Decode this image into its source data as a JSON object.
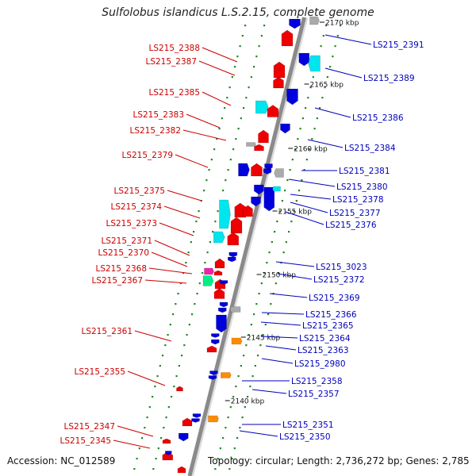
{
  "title": "Sulfolobus islandicus L.S.2.15, complete genome",
  "footer": {
    "accession_label": "Accession:",
    "accession": "NC_012589",
    "topology": "Topology: circular",
    "length": "Length: 2,736,272 bp",
    "genes": "Genes: 2,785"
  },
  "colors": {
    "backbone": "#8a8a8a",
    "forward_gene": "#ee0000",
    "reverse_gene": "#0000dd",
    "label_left": "#cc0000",
    "label_right": "#0000bb",
    "cyan": "#00e5ee",
    "gray": "#aaaaaa",
    "orange": "#ff8c00",
    "magenta": "#ee22aa",
    "spring_green": "#00ee88",
    "tick": "#228822"
  },
  "position_ticks": [
    "2170 kbp",
    "2165 kbp",
    "2160 kbp",
    "2155 kbp",
    "2150 kbp",
    "2145 kbp",
    "2140 kbp"
  ],
  "left_genes": [
    "LS215_2388",
    "LS215_2387",
    "LS215_2385",
    "LS215_2383",
    "LS215_2382",
    "LS215_2379",
    "LS215_2375",
    "LS215_2374",
    "LS215_2373",
    "LS215_2371",
    "LS215_2370",
    "LS215_2368",
    "LS215_2367",
    "LS215_2361",
    "LS215_2355",
    "LS215_2347",
    "LS215_2345"
  ],
  "right_genes": [
    "LS215_2391",
    "LS215_2389",
    "LS215_2386",
    "LS215_2384",
    "LS215_2381",
    "LS215_2380",
    "LS215_2378",
    "LS215_2377",
    "LS215_2376",
    "LS215_3023",
    "LS215_2372",
    "LS215_2369",
    "LS215_2366",
    "LS215_2365",
    "LS215_2364",
    "LS215_2363",
    "LS215_2980",
    "LS215_2358",
    "LS215_2357",
    "LS215_2351",
    "LS215_2350"
  ]
}
